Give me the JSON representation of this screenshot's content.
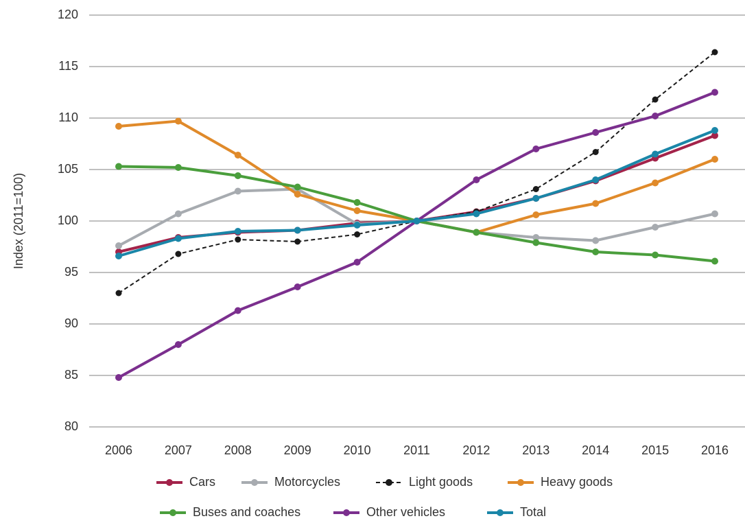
{
  "chart_data": {
    "type": "line",
    "y_label": "Index (2011=100)",
    "categories": [
      "2006",
      "2007",
      "2008",
      "2009",
      "2010",
      "2011",
      "2012",
      "2013",
      "2014",
      "2015",
      "2016"
    ],
    "series": [
      {
        "name": "Cars",
        "color": "#a3234a",
        "values": [
          97.0,
          98.4,
          98.9,
          99.1,
          99.8,
          100,
          100.9,
          102.2,
          103.9,
          106.1,
          108.3
        ]
      },
      {
        "name": "Motorcycles",
        "color": "#a7abb0",
        "values": [
          97.6,
          100.7,
          102.9,
          103.1,
          99.7,
          100,
          98.9,
          98.4,
          98.1,
          99.4,
          100.7
        ]
      },
      {
        "name": "Light goods",
        "color": "#1a1a1a",
        "dashed": true,
        "values": [
          93.0,
          96.8,
          98.2,
          98.0,
          98.7,
          100,
          100.9,
          103.1,
          106.7,
          111.8,
          116.4
        ]
      },
      {
        "name": "Heavy goods",
        "color": "#e08a2a",
        "values": [
          109.2,
          109.7,
          106.4,
          102.6,
          101.0,
          100,
          98.9,
          100.6,
          101.7,
          103.7,
          106.0
        ]
      },
      {
        "name": "Buses and coaches",
        "color": "#4a9e3c",
        "values": [
          105.3,
          105.2,
          104.4,
          103.3,
          101.8,
          100,
          98.9,
          97.9,
          97.0,
          96.7,
          96.1
        ]
      },
      {
        "name": "Other vehicles",
        "color": "#7b2f8e",
        "values": [
          84.8,
          88.0,
          91.3,
          93.6,
          96.0,
          100,
          104.0,
          107.0,
          108.6,
          110.2,
          112.5
        ]
      },
      {
        "name": "Total",
        "color": "#1a86a8",
        "values": [
          96.6,
          98.3,
          99.0,
          99.1,
          99.6,
          100,
          100.7,
          102.2,
          104.0,
          106.5,
          108.8
        ]
      }
    ],
    "ylim": [
      80,
      120
    ],
    "yticks": [
      80,
      85,
      90,
      95,
      100,
      105,
      110,
      115,
      120
    ],
    "grid": true,
    "legend": "bottom"
  }
}
